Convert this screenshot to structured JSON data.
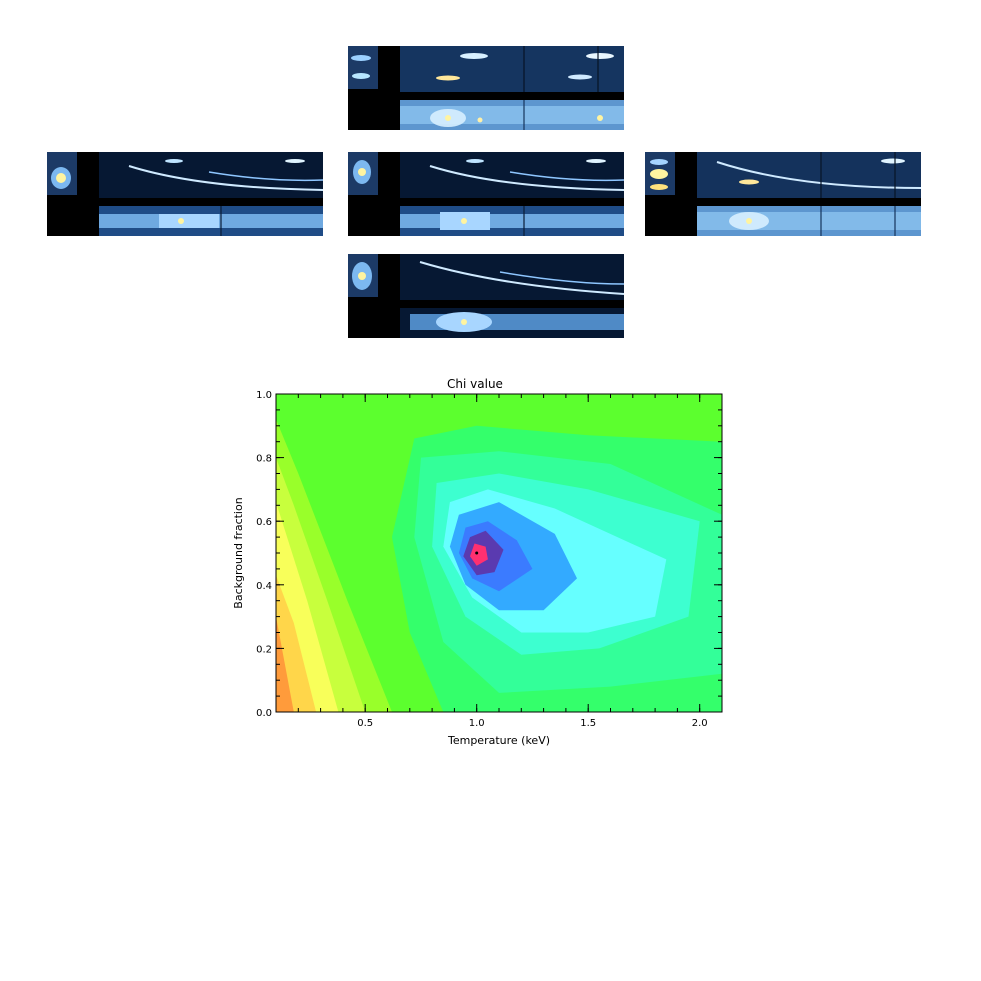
{
  "spectra_panels": [
    {
      "id": "top"
    },
    {
      "id": "left"
    },
    {
      "id": "center"
    },
    {
      "id": "right"
    },
    {
      "id": "bottom"
    }
  ],
  "chart_data": {
    "type": "heatmap",
    "title": "Chi value",
    "xlabel": "Temperature (keV)",
    "ylabel": "Background fraction",
    "xlim": [
      0.1,
      2.1
    ],
    "ylim": [
      0.0,
      1.0
    ],
    "xticks": [
      "0.5",
      "1.0",
      "1.5",
      "2.0"
    ],
    "xtick_values": [
      0.5,
      1.0,
      1.5,
      2.0
    ],
    "yticks": [
      "0.0",
      "0.2",
      "0.4",
      "0.6",
      "0.8",
      "1.0"
    ],
    "ytick_values": [
      0.0,
      0.2,
      0.4,
      0.6,
      0.8,
      1.0
    ],
    "minimum": {
      "x": 1.0,
      "y": 0.5
    },
    "contour_colors": [
      "#5cff2e",
      "#34ff6b",
      "#33ff99",
      "#3dffd0",
      "#66ffff",
      "#33aaff",
      "#3b7bff",
      "#5a3ab0",
      "#ff3070"
    ],
    "low_x_colors": [
      "#ff9b3b",
      "#ffd64a",
      "#f8ff5a",
      "#c8ff3d",
      "#99ff2a"
    ]
  }
}
